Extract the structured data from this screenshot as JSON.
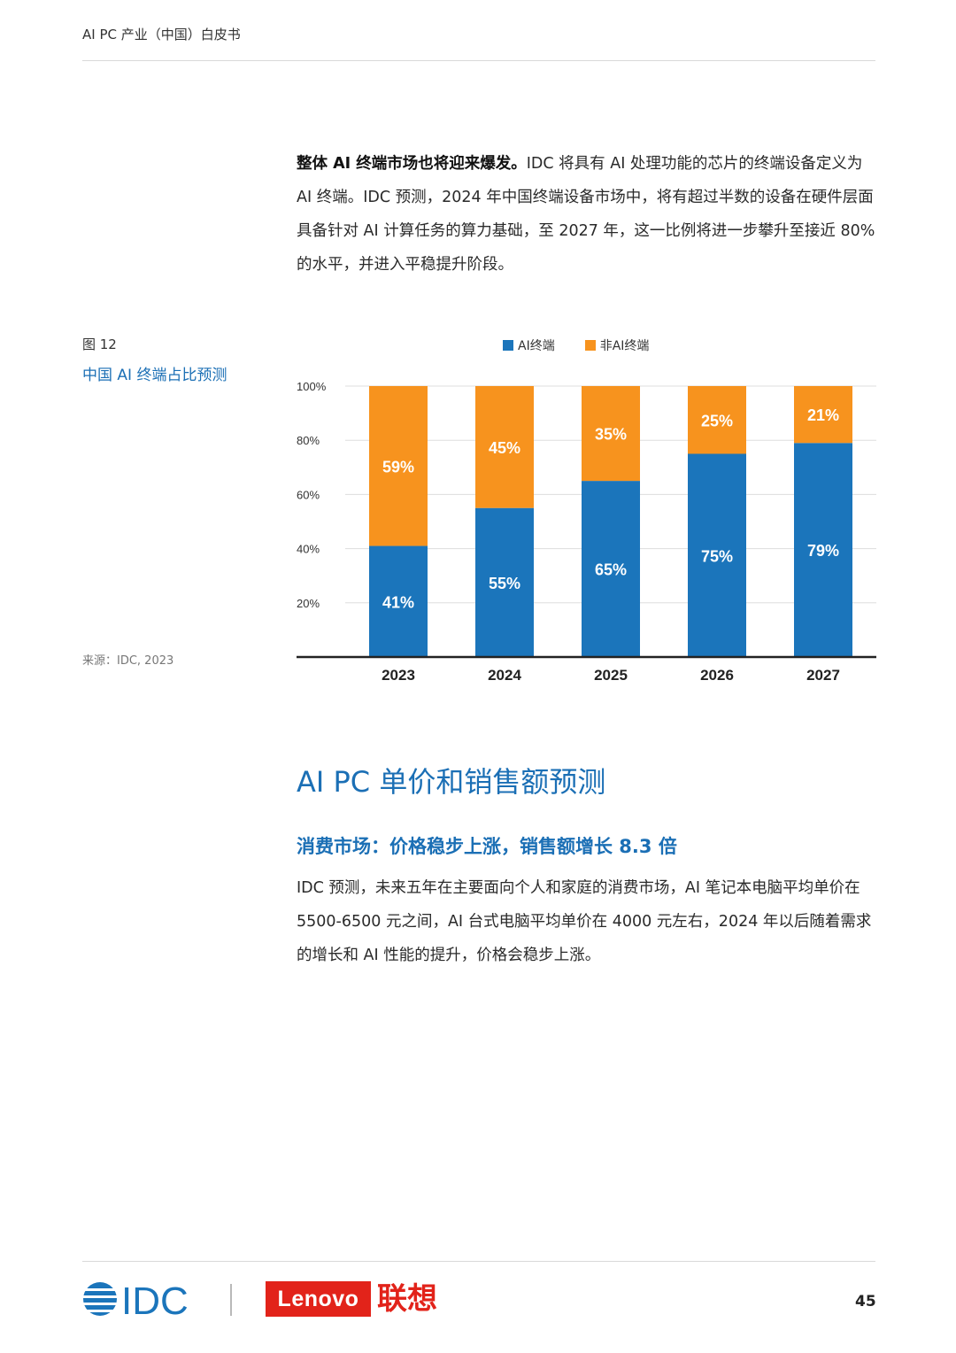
{
  "header": {
    "title": "AI PC 产业（中国）白皮书"
  },
  "intro": {
    "bold_lead": "整体 AI 终端市场也将迎来爆发。",
    "text": "IDC 将具有 AI 处理功能的芯片的终端设备定义为 AI 终端。IDC 预测，2024 年中国终端设备市场中，将有超过半数的设备在硬件层面具备针对 AI 计算任务的算力基础，至 2027 年，这一比例将进一步攀升至接近 80% 的水平，并进入平稳提升阶段。"
  },
  "figure": {
    "label": "图 12",
    "title": "中国 AI 终端占比预测",
    "source": "来源：IDC, 2023"
  },
  "chart_data": {
    "type": "bar",
    "stacked": true,
    "categories": [
      "2023",
      "2024",
      "2025",
      "2026",
      "2027"
    ],
    "series": [
      {
        "name": "AI终端",
        "color": "#1b75bb",
        "values": [
          41,
          55,
          65,
          75,
          79
        ],
        "labels": [
          "41%",
          "55%",
          "65%",
          "75%",
          "79%"
        ]
      },
      {
        "name": "非AI终端",
        "color": "#f7931e",
        "values": [
          59,
          45,
          35,
          25,
          21
        ],
        "labels": [
          "59%",
          "45%",
          "35%",
          "25%",
          "21%"
        ]
      }
    ],
    "yticks": [
      "20%",
      "40%",
      "60%",
      "80%",
      "100%"
    ],
    "ytick_values": [
      20,
      40,
      60,
      80,
      100
    ],
    "ylim": [
      0,
      100
    ],
    "grid": true,
    "legend_position": "top"
  },
  "section": {
    "title": "AI PC 单价和销售额预测",
    "subtitle": "消费市场：价格稳步上涨，销售额增长 8.3 倍",
    "text": "IDC 预测，未来五年在主要面向个人和家庭的消费市场，AI 笔记本电脑平均单价在 5500-6500 元之间，AI 台式电脑平均单价在 4000 元左右，2024 年以后随着需求的增长和 AI 性能的提升，价格会稳步上涨。"
  },
  "footer": {
    "idc_logo": "IDC",
    "lenovo_logo": "Lenovo",
    "lenovo_cn": "联想",
    "page_number": "45"
  }
}
